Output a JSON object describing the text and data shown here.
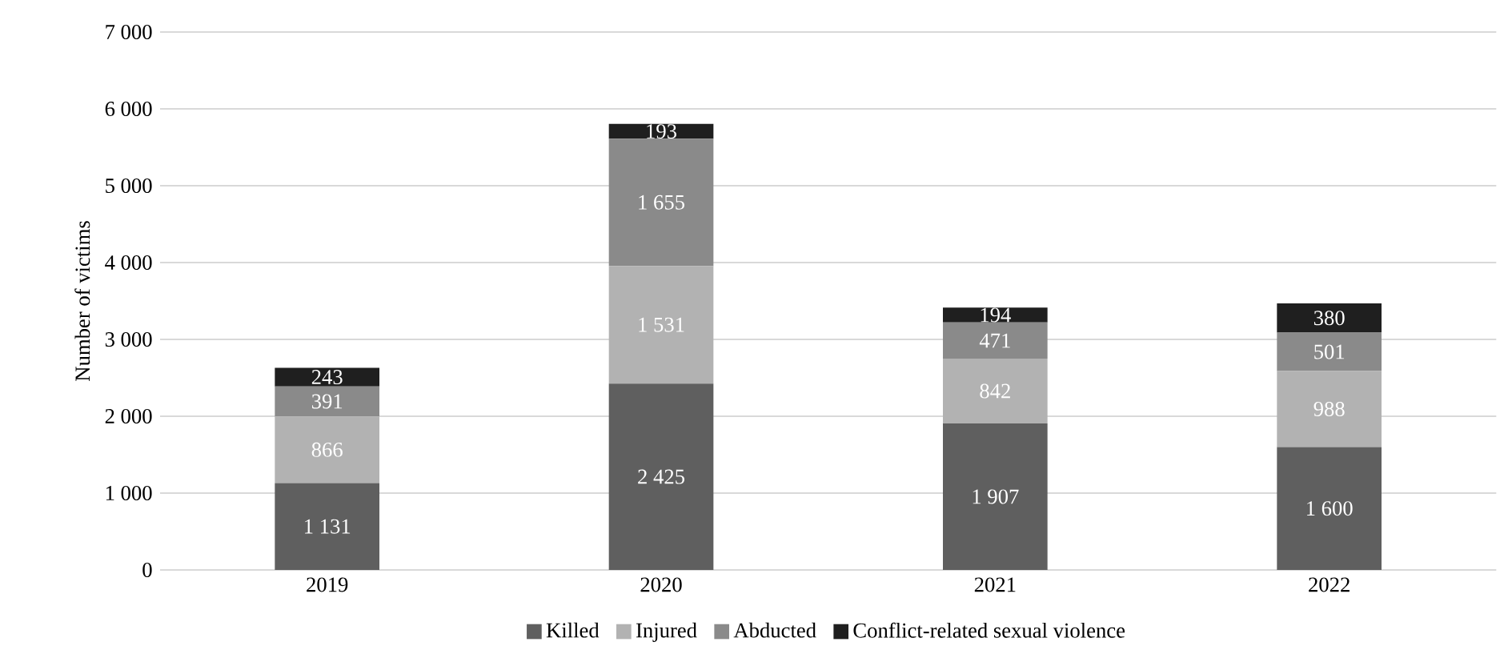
{
  "chart_data": {
    "type": "bar",
    "stacked": true,
    "ylabel": "Number of victims",
    "categories": [
      "2019",
      "2020",
      "2021",
      "2022"
    ],
    "series": [
      {
        "name": "Killed",
        "color": "#5f5f5f",
        "values": [
          1131,
          2425,
          1907,
          1600
        ],
        "value_labels": [
          "1 131",
          "2 425",
          "1 907",
          "1 600"
        ]
      },
      {
        "name": "Injured",
        "color": "#b2b2b2",
        "values": [
          866,
          1531,
          842,
          988
        ],
        "value_labels": [
          "866",
          "1 531",
          "842",
          "988"
        ]
      },
      {
        "name": "Abducted",
        "color": "#8a8a8a",
        "values": [
          391,
          1655,
          471,
          501
        ],
        "value_labels": [
          "391",
          "1 655",
          "471",
          "501"
        ]
      },
      {
        "name": "Conflict-related sexual violence",
        "color": "#1f1f1f",
        "values": [
          243,
          193,
          194,
          380
        ],
        "value_labels": [
          "243",
          "193",
          "194",
          "380"
        ]
      }
    ],
    "ylim": [
      0,
      7000
    ],
    "yticks": [
      0,
      {
        "value": 1000,
        "label": "1 000"
      },
      {
        "value": 2000,
        "label": "2 000"
      },
      {
        "value": 3000,
        "label": "3 000"
      },
      {
        "value": 4000,
        "label": "4 000"
      },
      {
        "value": 5000,
        "label": "5 000"
      },
      {
        "value": 6000,
        "label": "6 000"
      },
      {
        "value": 7000,
        "label": "7 000"
      }
    ],
    "grid": "y",
    "legend": "bottom"
  }
}
